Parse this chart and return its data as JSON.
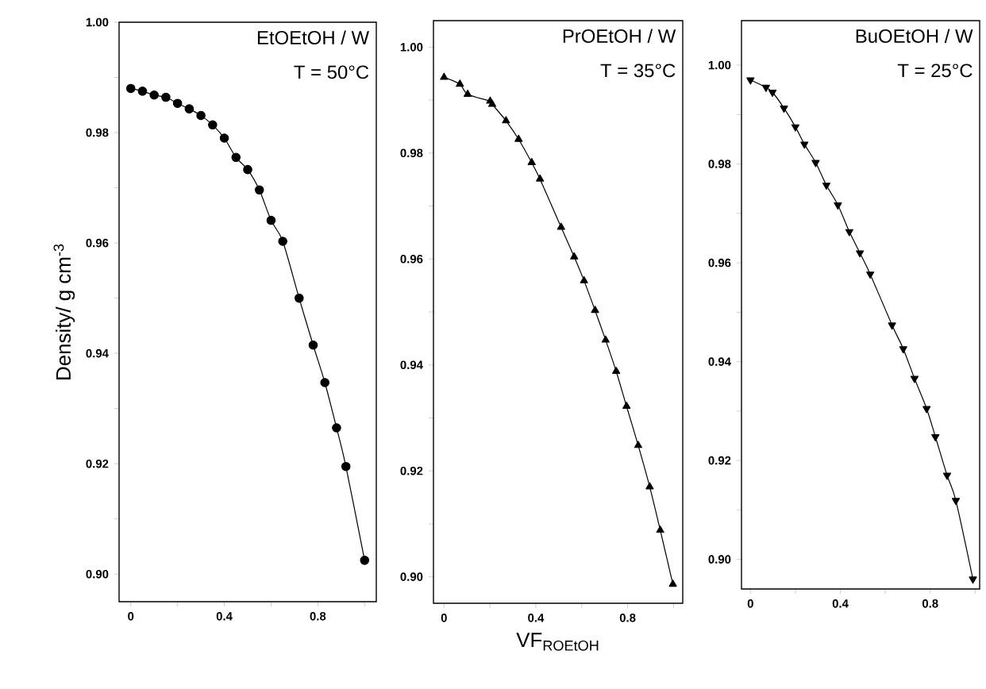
{
  "chart_data": [
    {
      "type": "line",
      "ylabel": "Density/ g cm$^{-3}$",
      "annotations": [
        "EtOEtOH / W",
        "T = 50°C"
      ],
      "marker": "circle",
      "xlim": [
        -0.05,
        1.05
      ],
      "ylim": [
        0.895,
        1.0
      ],
      "xticks": [
        0,
        {
          "value": 0.2,
          "label": null
        },
        0.4,
        {
          "value": 0.6,
          "label": null
        },
        0.8,
        {
          "value": 1.0,
          "label": null
        }
      ],
      "yticks": [
        {
          "value": 0.9,
          "label": "0.90"
        },
        {
          "value": 0.91,
          "label": null
        },
        0.92,
        {
          "value": 0.93,
          "label": null
        },
        0.94,
        {
          "value": 0.95,
          "label": null
        },
        0.96,
        {
          "value": 0.97,
          "label": null
        },
        0.98,
        {
          "value": 0.99,
          "label": null
        },
        {
          "value": 1.0,
          "label": "1.00"
        }
      ],
      "x": [
        0,
        0.05,
        0.1,
        0.15,
        0.2,
        0.25,
        0.3,
        0.35,
        0.4,
        0.45,
        0.5,
        0.55,
        0.6,
        0.65,
        0.72,
        0.78,
        0.83,
        0.88,
        0.92,
        1.0
      ],
      "series": [
        {
          "color": "#000000",
          "values": [
            0.988,
            0.9875,
            0.9868,
            0.9864,
            0.9853,
            0.9843,
            0.9831,
            0.9814,
            0.979,
            0.9755,
            0.9733,
            0.9696,
            0.9641,
            0.9603,
            0.95,
            0.9415,
            0.9347,
            0.9265,
            0.9195,
            0.9025
          ]
        }
      ]
    },
    {
      "type": "line",
      "xlabel": "VF$_{ROEtOH}$",
      "annotations": [
        "PrOEtOH / W",
        "T = 35°C"
      ],
      "marker": "triangle",
      "xlim": [
        -0.046,
        1.04
      ],
      "ylim": [
        0.895,
        1.005
      ],
      "xticks": [
        0,
        {
          "value": 0.2,
          "label": null
        },
        0.4,
        {
          "value": 0.6,
          "label": null
        },
        0.8,
        {
          "value": 1.0,
          "label": null
        }
      ],
      "yticks": [
        {
          "value": 0.9,
          "label": "0.90"
        },
        {
          "value": 0.91,
          "label": null
        },
        0.92,
        {
          "value": 0.93,
          "label": null
        },
        0.94,
        {
          "value": 0.95,
          "label": null
        },
        0.96,
        {
          "value": 0.97,
          "label": null
        },
        0.98,
        {
          "value": 0.99,
          "label": null
        },
        {
          "value": 1.0,
          "label": "1.00"
        }
      ],
      "x": [
        0,
        0.069,
        0.103,
        0.201,
        0.21,
        0.27,
        0.325,
        0.382,
        0.418,
        0.51,
        0.567,
        0.61,
        0.658,
        0.704,
        0.75,
        0.795,
        0.846,
        0.896,
        0.942,
        0.997
      ],
      "series": [
        {
          "color": "#000000",
          "values": [
            0.9943,
            0.993,
            0.9911,
            0.9898,
            0.9892,
            0.9861,
            0.9826,
            0.9782,
            0.9751,
            0.966,
            0.9604,
            0.9559,
            0.9503,
            0.9447,
            0.9388,
            0.9322,
            0.9248,
            0.917,
            0.9088,
            0.8986
          ]
        }
      ]
    },
    {
      "type": "line",
      "annotations": [
        "BuOEtOH / W",
        "T = 25°C"
      ],
      "marker": "triangle-down",
      "xlim": [
        -0.04,
        1.02
      ],
      "ylim": [
        0.894,
        1.009
      ],
      "xticks": [
        0,
        {
          "value": 0.2,
          "label": null
        },
        0.4,
        {
          "value": 0.6,
          "label": null
        },
        0.8,
        {
          "value": 1.0,
          "label": null
        }
      ],
      "yticks": [
        {
          "value": 0.9,
          "label": "0.90"
        },
        {
          "value": 0.91,
          "label": null
        },
        0.92,
        {
          "value": 0.93,
          "label": null
        },
        0.94,
        {
          "value": 0.95,
          "label": null
        },
        0.96,
        {
          "value": 0.97,
          "label": null
        },
        0.98,
        {
          "value": 0.99,
          "label": null
        },
        {
          "value": 1.0,
          "label": "1.00"
        }
      ],
      "x": [
        0,
        0.069,
        0.098,
        0.149,
        0.2,
        0.24,
        0.29,
        0.338,
        0.389,
        0.44,
        0.487,
        0.533,
        0.63,
        0.68,
        0.73,
        0.784,
        0.823,
        0.875,
        0.914,
        0.99
      ],
      "series": [
        {
          "color": "#000000",
          "values": [
            0.997,
            0.9955,
            0.9945,
            0.9913,
            0.9875,
            0.984,
            0.9803,
            0.9757,
            0.9717,
            0.9663,
            0.962,
            0.9577,
            0.9474,
            0.9426,
            0.9366,
            0.9305,
            0.9248,
            0.917,
            0.9119,
            0.896
          ]
        }
      ]
    }
  ]
}
